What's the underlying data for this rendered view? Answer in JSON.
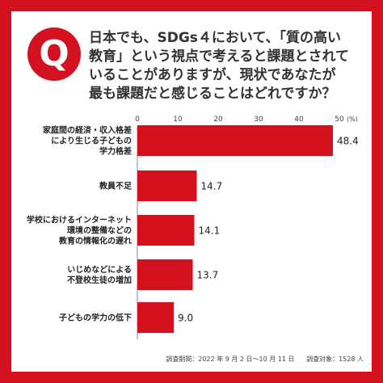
{
  "accent_color": "#d4111e",
  "badge_letter": "Q",
  "question_lines": [
    "日本でも、SDGs４において、「質の高い",
    "教育」という視点で考えると課題とされて",
    "いることがありますが、現状であなたが",
    "最も課題だと感じることはどれですか？"
  ],
  "footer": {
    "period": "調査期間：2022 年 9 月 2 日～10 月 11 日",
    "target": "調査対象：1528 人"
  },
  "chart_data": {
    "type": "bar",
    "orientation": "horizontal",
    "categories": [
      [
        "家庭間の経済・収入格差",
        "により生じる子どもの",
        "学力格差"
      ],
      [
        "教員不足"
      ],
      [
        "学校におけるインターネット",
        "環境の整備などの",
        "教育の情報化の遅れ"
      ],
      [
        "いじめなどによる",
        "不登校生徒の増加"
      ],
      [
        "子どもの学力の低下"
      ]
    ],
    "values": [
      48.4,
      14.7,
      14.1,
      13.7,
      9.0
    ],
    "value_labels": [
      "48.4",
      "14.7",
      "14.1",
      "13.7",
      "9.0"
    ],
    "x_ticks": [
      "0",
      "10",
      "20",
      "30",
      "40",
      "50"
    ],
    "x_unit": "(%)",
    "xlim": [
      0,
      50
    ],
    "bar_color": "#d4111e",
    "grid": false,
    "legend": "none"
  }
}
